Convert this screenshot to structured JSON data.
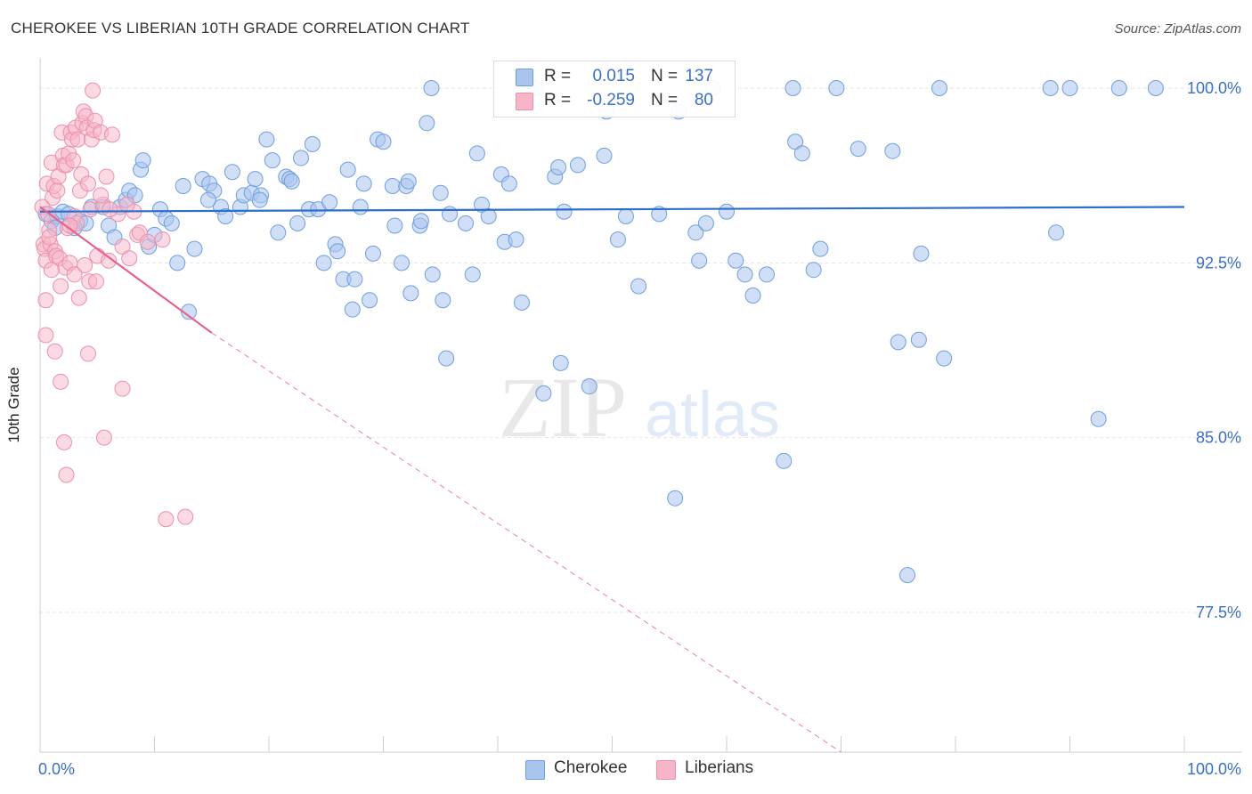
{
  "header": {
    "title": "CHEROKEE VS LIBERIAN 10TH GRADE CORRELATION CHART",
    "source": "Source: ZipAtlas.com"
  },
  "watermark": {
    "zip": "ZIP",
    "atlas": "atlas"
  },
  "legend_top": {
    "rows": [
      {
        "r_label": "R =",
        "r_value": "0.015",
        "n_label": "N =",
        "n_value": "137"
      },
      {
        "r_label": "R =",
        "r_value": "-0.259",
        "n_label": "N =",
        "n_value": "80"
      }
    ]
  },
  "legend_bottom": {
    "series1": "Cherokee",
    "series2": "Liberians"
  },
  "colors": {
    "cherokee_fill": "#a9c5ee",
    "cherokee_stroke": "#6f9ee0",
    "cherokee_line": "#2f6fcc",
    "liberian_fill": "#f7b6c8",
    "liberian_stroke": "#ec8fab",
    "liberian_line": "#e8628c",
    "tick_label": "#3b6fc4",
    "grid": "#e6e6e6"
  },
  "chart_data": {
    "type": "scatter",
    "title": "CHEROKEE VS LIBERIAN 10TH GRADE CORRELATION CHART",
    "xlabel": "",
    "ylabel": "10th Grade",
    "xlim": [
      0,
      100
    ],
    "ylim": [
      71.5,
      101.3
    ],
    "x_tick_labels": [
      "0.0%",
      "100.0%"
    ],
    "y_ticks": [
      100,
      92.5,
      85,
      77.5
    ],
    "y_tick_labels": [
      "100.0%",
      "92.5%",
      "85.0%",
      "77.5%"
    ],
    "grid": true,
    "series": [
      {
        "name": "Cherokee",
        "r": 0.015,
        "n": 137,
        "trend": {
          "x": [
            0,
            100
          ],
          "y": [
            94.7,
            94.9
          ]
        },
        "points": [
          [
            0.5,
            94.6
          ],
          [
            1.0,
            94.3
          ],
          [
            1.5,
            94.5
          ],
          [
            2.0,
            94.7
          ],
          [
            2.5,
            94.6
          ],
          [
            3.5,
            94.3
          ],
          [
            4.0,
            94.2
          ],
          [
            4.5,
            94.9
          ],
          [
            5.5,
            94.9
          ],
          [
            6.0,
            94.1
          ],
          [
            7.0,
            94.9
          ],
          [
            7.5,
            95.2
          ],
          [
            7.8,
            95.6
          ],
          [
            8.3,
            95.4
          ],
          [
            8.8,
            96.5
          ],
          [
            9.5,
            93.2
          ],
          [
            10.0,
            93.7
          ],
          [
            10.5,
            94.8
          ],
          [
            11.0,
            94.4
          ],
          [
            11.5,
            94.2
          ],
          [
            12.0,
            92.5
          ],
          [
            12.5,
            95.8
          ],
          [
            13.0,
            90.4
          ],
          [
            13.5,
            93.1
          ],
          [
            14.2,
            96.1
          ],
          [
            14.8,
            95.9
          ],
          [
            15.2,
            95.6
          ],
          [
            15.8,
            94.9
          ],
          [
            16.2,
            94.5
          ],
          [
            16.8,
            96.4
          ],
          [
            17.5,
            94.9
          ],
          [
            17.8,
            95.4
          ],
          [
            18.5,
            95.5
          ],
          [
            18.8,
            96.1
          ],
          [
            19.3,
            95.4
          ],
          [
            19.2,
            95.2
          ],
          [
            20.3,
            96.9
          ],
          [
            19.8,
            97.8
          ],
          [
            20.8,
            93.8
          ],
          [
            21.5,
            96.2
          ],
          [
            21.8,
            96.1
          ],
          [
            22.5,
            94.2
          ],
          [
            22.8,
            97.0
          ],
          [
            23.5,
            94.8
          ],
          [
            23.8,
            97.6
          ],
          [
            24.3,
            94.8
          ],
          [
            24.8,
            92.5
          ],
          [
            25.3,
            95.1
          ],
          [
            25.8,
            93.3
          ],
          [
            26.0,
            93.0
          ],
          [
            26.5,
            91.8
          ],
          [
            26.9,
            96.5
          ],
          [
            27.5,
            91.8
          ],
          [
            28.0,
            94.9
          ],
          [
            28.3,
            95.9
          ],
          [
            28.8,
            90.9
          ],
          [
            29.1,
            92.9
          ],
          [
            29.5,
            97.8
          ],
          [
            30.0,
            97.7
          ],
          [
            30.8,
            95.8
          ],
          [
            31.0,
            94.1
          ],
          [
            31.6,
            92.5
          ],
          [
            32.0,
            95.8
          ],
          [
            32.4,
            91.2
          ],
          [
            33.2,
            94.1
          ],
          [
            33.3,
            94.3
          ],
          [
            33.8,
            98.5
          ],
          [
            34.3,
            92.0
          ],
          [
            35.0,
            95.5
          ],
          [
            35.2,
            90.9
          ],
          [
            34.2,
            100.0
          ],
          [
            35.5,
            88.4
          ],
          [
            35.8,
            94.6
          ],
          [
            37.2,
            94.2
          ],
          [
            37.8,
            92.0
          ],
          [
            38.6,
            95.0
          ],
          [
            39.2,
            94.5
          ],
          [
            40.3,
            96.3
          ],
          [
            40.6,
            93.4
          ],
          [
            41.0,
            95.9
          ],
          [
            41.6,
            93.5
          ],
          [
            42.1,
            90.8
          ],
          [
            43.3,
            100.0
          ],
          [
            44.0,
            86.9
          ],
          [
            45.0,
            96.2
          ],
          [
            45.3,
            96.6
          ],
          [
            45.8,
            94.7
          ],
          [
            47.0,
            96.7
          ],
          [
            48.0,
            87.2
          ],
          [
            49.3,
            97.1
          ],
          [
            49.5,
            99.0
          ],
          [
            50.5,
            93.5
          ],
          [
            51.2,
            94.5
          ],
          [
            52.3,
            91.5
          ],
          [
            54.1,
            94.6
          ],
          [
            55.5,
            82.4
          ],
          [
            55.8,
            99.0
          ],
          [
            57.3,
            93.8
          ],
          [
            57.6,
            92.6
          ],
          [
            58.2,
            94.2
          ],
          [
            58.8,
            100.0
          ],
          [
            60.0,
            94.7
          ],
          [
            60.8,
            92.6
          ],
          [
            61.6,
            92.0
          ],
          [
            62.3,
            91.1
          ],
          [
            63.5,
            92.0
          ],
          [
            65.0,
            84.0
          ],
          [
            65.8,
            100.0
          ],
          [
            66.0,
            97.7
          ],
          [
            66.6,
            97.2
          ],
          [
            67.6,
            92.2
          ],
          [
            68.2,
            93.1
          ],
          [
            69.6,
            100.0
          ],
          [
            71.5,
            97.4
          ],
          [
            74.5,
            97.3
          ],
          [
            75.0,
            89.1
          ],
          [
            76.8,
            89.2
          ],
          [
            77.0,
            92.9
          ],
          [
            78.6,
            100.0
          ],
          [
            79.0,
            88.4
          ],
          [
            88.3,
            100.0
          ],
          [
            88.8,
            93.8
          ],
          [
            90.0,
            100.0
          ],
          [
            92.5,
            85.8
          ],
          [
            94.3,
            100.0
          ],
          [
            97.5,
            100.0
          ],
          [
            75.8,
            79.1
          ],
          [
            45.5,
            88.2
          ],
          [
            38.2,
            97.2
          ],
          [
            32.2,
            96.0
          ],
          [
            27.3,
            90.5
          ],
          [
            22.0,
            96.0
          ],
          [
            14.7,
            95.2
          ],
          [
            9.0,
            96.9
          ],
          [
            6.5,
            93.6
          ],
          [
            3.0,
            94.0
          ],
          [
            1.3,
            94.0
          ]
        ]
      },
      {
        "name": "Liberians",
        "r": -0.259,
        "n": 80,
        "trend": {
          "x": [
            0,
            15
          ],
          "y": [
            94.9,
            89.5
          ]
        },
        "trend_extended": {
          "x": [
            15,
            70
          ],
          "y": [
            89.5,
            71.5
          ]
        },
        "points": [
          [
            0.2,
            94.9
          ],
          [
            0.3,
            93.3
          ],
          [
            0.4,
            93.1
          ],
          [
            0.5,
            92.6
          ],
          [
            0.6,
            95.9
          ],
          [
            0.7,
            94.6
          ],
          [
            0.8,
            93.9
          ],
          [
            0.9,
            93.3
          ],
          [
            1.0,
            96.8
          ],
          [
            1.1,
            95.3
          ],
          [
            1.2,
            95.8
          ],
          [
            1.3,
            93.0
          ],
          [
            1.4,
            92.8
          ],
          [
            1.5,
            95.6
          ],
          [
            1.6,
            96.2
          ],
          [
            1.7,
            92.7
          ],
          [
            1.8,
            91.5
          ],
          [
            1.9,
            98.1
          ],
          [
            2.0,
            97.1
          ],
          [
            2.1,
            96.7
          ],
          [
            2.2,
            92.3
          ],
          [
            2.3,
            96.7
          ],
          [
            2.4,
            94.0
          ],
          [
            2.5,
            97.2
          ],
          [
            2.6,
            92.5
          ],
          [
            2.7,
            98.1
          ],
          [
            2.8,
            97.8
          ],
          [
            2.9,
            96.9
          ],
          [
            3.0,
            94.5
          ],
          [
            3.1,
            98.3
          ],
          [
            3.2,
            94.2
          ],
          [
            3.3,
            97.8
          ],
          [
            3.4,
            91.0
          ],
          [
            3.5,
            95.6
          ],
          [
            3.6,
            96.3
          ],
          [
            3.7,
            98.5
          ],
          [
            3.8,
            99.0
          ],
          [
            3.9,
            92.4
          ],
          [
            4.0,
            98.8
          ],
          [
            4.1,
            98.3
          ],
          [
            4.2,
            95.9
          ],
          [
            4.3,
            91.7
          ],
          [
            4.4,
            94.8
          ],
          [
            4.5,
            97.8
          ],
          [
            4.6,
            99.9
          ],
          [
            4.7,
            98.2
          ],
          [
            4.8,
            98.6
          ],
          [
            4.9,
            91.7
          ],
          [
            5.0,
            92.8
          ],
          [
            5.3,
            98.1
          ],
          [
            5.5,
            95.0
          ],
          [
            5.8,
            96.2
          ],
          [
            6.0,
            92.6
          ],
          [
            6.3,
            98.0
          ],
          [
            6.8,
            94.6
          ],
          [
            7.2,
            93.2
          ],
          [
            7.8,
            92.7
          ],
          [
            8.2,
            94.7
          ],
          [
            8.5,
            93.7
          ],
          [
            8.7,
            93.8
          ],
          [
            9.4,
            93.4
          ],
          [
            10.7,
            93.5
          ],
          [
            0.5,
            89.4
          ],
          [
            0.5,
            90.9
          ],
          [
            1.3,
            88.7
          ],
          [
            1.8,
            87.4
          ],
          [
            2.1,
            84.8
          ],
          [
            2.3,
            83.4
          ],
          [
            4.2,
            88.6
          ],
          [
            5.6,
            85.0
          ],
          [
            7.2,
            87.1
          ],
          [
            11.0,
            81.5
          ],
          [
            12.7,
            81.6
          ],
          [
            0.8,
            93.6
          ],
          [
            1.0,
            92.2
          ],
          [
            2.6,
            94.1
          ],
          [
            3.0,
            92.0
          ],
          [
            5.3,
            95.4
          ],
          [
            6.1,
            94.8
          ],
          [
            7.6,
            95.0
          ]
        ]
      }
    ]
  }
}
